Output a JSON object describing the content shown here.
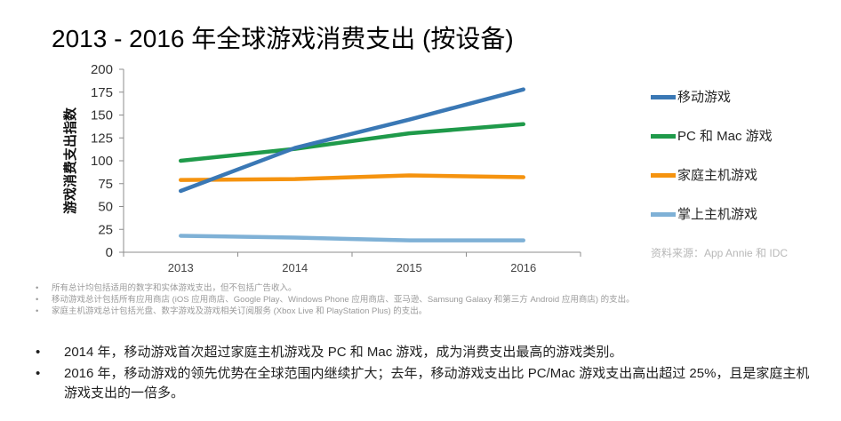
{
  "title": "2013 - 2016 年全球游戏消费支出 (按设备)",
  "chart_data": {
    "type": "line",
    "title": "2013 - 2016 年全球游戏消费支出 (按设备)",
    "xlabel": "",
    "ylabel": "游戏消费支出指数",
    "categories": [
      "2013",
      "2014",
      "2015",
      "2016"
    ],
    "ylim": [
      0,
      200
    ],
    "yticks": [
      0,
      25,
      50,
      75,
      100,
      125,
      150,
      175,
      200
    ],
    "grid": false,
    "legend_position": "right",
    "series": [
      {
        "name": "移动游戏",
        "color": "#3a78b5",
        "values": [
          67,
          114,
          145,
          178
        ]
      },
      {
        "name": "PC 和 Mac 游戏",
        "color": "#1f9a4a",
        "values": [
          100,
          113,
          130,
          140
        ]
      },
      {
        "name": "家庭主机游戏",
        "color": "#f5930f",
        "values": [
          79,
          80,
          84,
          82
        ]
      },
      {
        "name": "掌上主机游戏",
        "color": "#7fb1d6",
        "values": [
          18,
          16,
          13,
          13
        ]
      }
    ]
  },
  "source": "资料来源：App Annie 和 IDC",
  "notes_bullet": "•",
  "notes": [
    "所有总计均包括适用的数字和实体游戏支出，但不包括广告收入。",
    "移动游戏总计包括所有应用商店 (iOS 应用商店、Google Play、Windows Phone 应用商店、亚马逊、Samsung Galaxy 和第三方 Android 应用商店) 的支出。",
    "家庭主机游戏总计包括光盘、数字游戏及游戏相关订阅服务 (Xbox Live 和 PlayStation Plus) 的支出。"
  ],
  "bullet_char": "•",
  "bullets": [
    "2014 年，移动游戏首次超过家庭主机游戏及 PC 和 Mac 游戏，成为消费支出最高的游戏类别。",
    "2016 年，移动游戏的领先优势在全球范围内继续扩大；去年，移动游戏支出比 PC/Mac 游戏支出高出超过 25%，且是家庭主机游戏支出的一倍多。"
  ]
}
